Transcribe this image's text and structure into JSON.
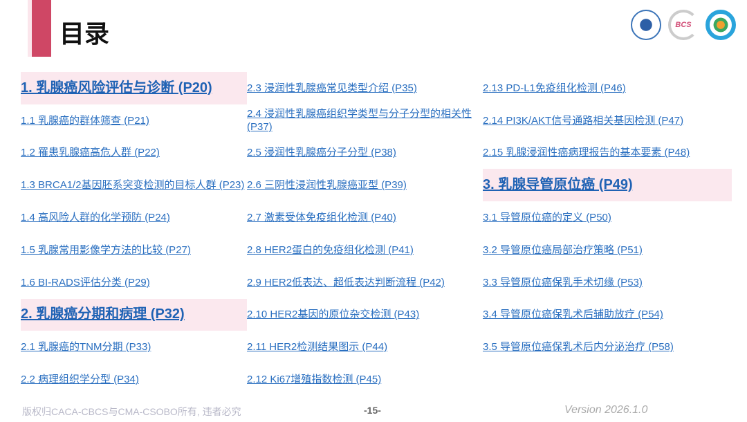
{
  "header": {
    "title": "目录",
    "logos": [
      "China Anti-Cancer Association",
      "BCS",
      "CSOBO"
    ]
  },
  "columns": [
    [
      {
        "label": "1. 乳腺癌风险评估与诊断 (P20)",
        "heading": true
      },
      {
        "label": "1.1 乳腺癌的群体筛查 (P21)"
      },
      {
        "label": "1.2 罹患乳腺癌高危人群 (P22)"
      },
      {
        "label": "1.3  BRCA1/2基因胚系突变检测的目标人群 (P23)"
      },
      {
        "label": "1.4 高风险人群的化学预防 (P24)"
      },
      {
        "label": "1.5 乳腺常用影像学方法的比较 (P27)"
      },
      {
        "label": "1.6 BI-RADS评估分类 (P29)"
      },
      {
        "label": "2. 乳腺癌分期和病理 (P32)",
        "heading": true
      },
      {
        "label": "2.1 乳腺癌的TNM分期 (P33)"
      },
      {
        "label": "2.2 病理组织学分型 (P34)"
      }
    ],
    [
      {
        "label": "2.3 浸润性乳腺癌常见类型介绍 (P35)"
      },
      {
        "label": "2.4 浸润性乳腺癌组织学类型与分子分型的相关性 (P37)"
      },
      {
        "label": "2.5 浸润性乳腺癌分子分型 (P38)"
      },
      {
        "label": "2.6 三阴性浸润性乳腺癌亚型 (P39)"
      },
      {
        "label": "2.7 激素受体免疫组化检测 (P40)"
      },
      {
        "label": "2.8 HER2蛋白的免疫组化检测 (P41)"
      },
      {
        "label": "2.9 HER2低表达、超低表达判断流程 (P42)"
      },
      {
        "label": "2.10 HER2基因的原位杂交检测 (P43)"
      },
      {
        "label": "2.11 HER2检测结果图示 (P44)"
      },
      {
        "label": "2.12 Ki67增殖指数检测 (P45)"
      }
    ],
    [
      {
        "label": "2.13 PD-L1免疫组化检测 (P46)"
      },
      {
        "label": "2.14 PI3K/AKT信号通路相关基因检测  (P47)"
      },
      {
        "label": "2.15 乳腺浸润性癌病理报告的基本要素 (P48)"
      },
      {
        "label": "3. 乳腺导管原位癌 (P49)",
        "heading": true
      },
      {
        "label": "3.1 导管原位癌的定义 (P50)"
      },
      {
        "label": "3.2 导管原位癌局部治疗策略 (P51)"
      },
      {
        "label": "3.3 导管原位癌保乳手术切缘 (P53)"
      },
      {
        "label": "3.4 导管原位癌保乳术后辅助放疗 (P54)"
      },
      {
        "label": "3.5 导管原位癌保乳术后内分泌治疗 (P58)"
      }
    ]
  ],
  "footer": {
    "copyright": "版权归CACA-CBCS与CMA-CSOBO所有, 违者必究",
    "page": "-15-",
    "version": "Version 2026.1.0"
  },
  "colors": {
    "accent": "#cf4765",
    "link": "#2a6fc0",
    "highlight": "#fbe8ee"
  }
}
